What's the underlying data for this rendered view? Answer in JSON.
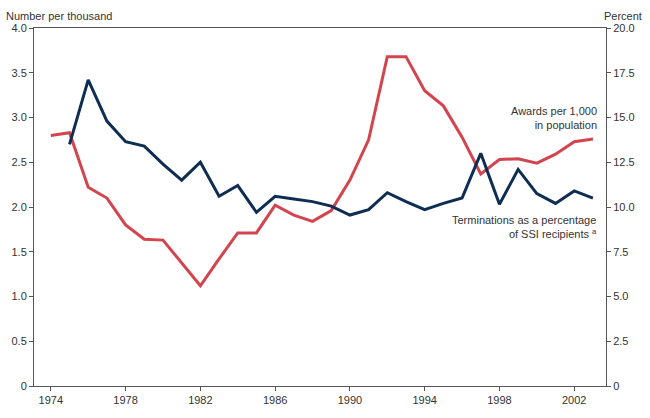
{
  "chart_data": {
    "type": "line",
    "y_label": "Number per thousand",
    "y2_label": "Percent",
    "x": [
      1974,
      1975,
      1976,
      1977,
      1978,
      1979,
      1980,
      1981,
      1982,
      1983,
      1984,
      1985,
      1986,
      1987,
      1988,
      1989,
      1990,
      1991,
      1992,
      1993,
      1994,
      1995,
      1996,
      1997,
      1998,
      1999,
      2000,
      2001,
      2002,
      2003
    ],
    "series": [
      {
        "name": "Awards per 1,000 in population",
        "color": "#d2444e",
        "axis": "y",
        "values": [
          2.8,
          2.83,
          2.22,
          2.1,
          1.8,
          1.64,
          1.63,
          1.37,
          1.12,
          1.42,
          1.71,
          1.71,
          2.02,
          1.91,
          1.84,
          1.96,
          2.3,
          2.75,
          3.68,
          3.68,
          3.3,
          3.13,
          2.78,
          2.37,
          2.53,
          2.54,
          2.49,
          2.59,
          2.73,
          2.76
        ]
      },
      {
        "name": "Terminations as a percentage of SSI recipients",
        "color": "#0e2d52",
        "axis": "y2",
        "values": [
          null,
          13.5,
          17.1,
          14.8,
          13.65,
          13.4,
          12.4,
          11.5,
          12.5,
          10.6,
          11.2,
          9.7,
          10.6,
          10.45,
          10.3,
          10.05,
          9.55,
          9.85,
          10.8,
          10.3,
          9.85,
          10.2,
          10.5,
          13.0,
          10.15,
          12.1,
          10.75,
          10.2,
          10.9,
          10.5
        ]
      }
    ],
    "annotations": [
      {
        "lines": [
          "Awards per 1,000",
          "in population"
        ]
      },
      {
        "lines": [
          "Terminations as a percentage",
          "of SSI recipients"
        ],
        "footnote": "a"
      }
    ],
    "xlim": [
      1973.1,
      2003.7
    ],
    "xticks": [
      1974,
      1978,
      1982,
      1986,
      1990,
      1994,
      1998,
      2002
    ],
    "ylim": [
      0,
      4
    ],
    "yticks": [
      0,
      0.5,
      {
        "value": 1,
        "label": "1.0"
      },
      1.5,
      {
        "value": 2,
        "label": "2.0"
      },
      2.5,
      {
        "value": 3,
        "label": "3.0"
      },
      3.5,
      {
        "value": 4,
        "label": "4.0"
      }
    ],
    "y2lim": [
      0,
      20
    ],
    "y2ticks": [
      0,
      2.5,
      {
        "value": 5,
        "label": "5.0"
      },
      7.5,
      {
        "value": 10,
        "label": "10.0"
      },
      12.5,
      {
        "value": 15,
        "label": "15.0"
      },
      17.5,
      {
        "value": 20,
        "label": "20.0"
      }
    ],
    "grid": false
  }
}
